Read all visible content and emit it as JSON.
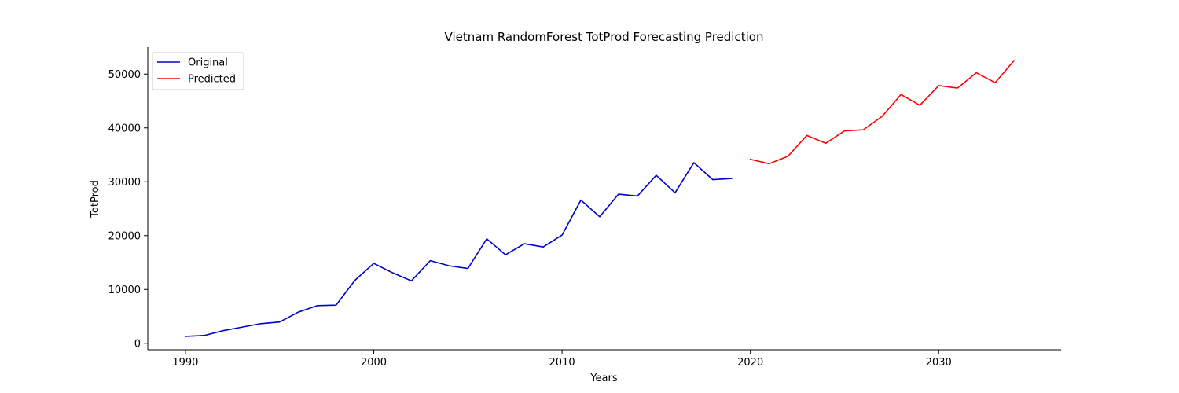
{
  "chart_data": {
    "type": "line",
    "title": "Vietnam RandomForest TotProd Forecasting Prediction",
    "xlabel": "Years",
    "ylabel": "TotProd",
    "xlim": [
      1988,
      2036.5
    ],
    "ylim": [
      -1200,
      55000
    ],
    "x_ticks": [
      1990,
      2000,
      2010,
      2020,
      2030
    ],
    "y_ticks": [
      0,
      10000,
      20000,
      30000,
      40000,
      50000
    ],
    "grid": false,
    "legend_position": "upper-left",
    "series": [
      {
        "name": "Original",
        "color": "#0000cd",
        "x": [
          1990,
          1991,
          1992,
          1993,
          1994,
          1995,
          1996,
          1997,
          1998,
          1999,
          2000,
          2001,
          2002,
          2003,
          2004,
          2005,
          2006,
          2007,
          2008,
          2009,
          2010,
          2011,
          2012,
          2013,
          2014,
          2015,
          2016,
          2017,
          2018,
          2019
        ],
        "y": [
          1300,
          1450,
          2350,
          3000,
          3650,
          3950,
          5800,
          7000,
          7100,
          11700,
          14850,
          13100,
          11600,
          15350,
          14400,
          13900,
          19400,
          16450,
          18500,
          17900,
          20100,
          26600,
          23500,
          27700,
          27350,
          31200,
          27950,
          33550,
          30400,
          30600
        ]
      },
      {
        "name": "Predicted",
        "color": "#ff0000",
        "x": [
          2020,
          2021,
          2022,
          2023,
          2024,
          2025,
          2026,
          2027,
          2028,
          2029,
          2030,
          2031,
          2032,
          2033,
          2034
        ],
        "y": [
          34150,
          33350,
          34750,
          38600,
          37150,
          39450,
          39650,
          42150,
          46200,
          44200,
          47850,
          47400,
          50250,
          48400,
          52500
        ]
      }
    ]
  }
}
